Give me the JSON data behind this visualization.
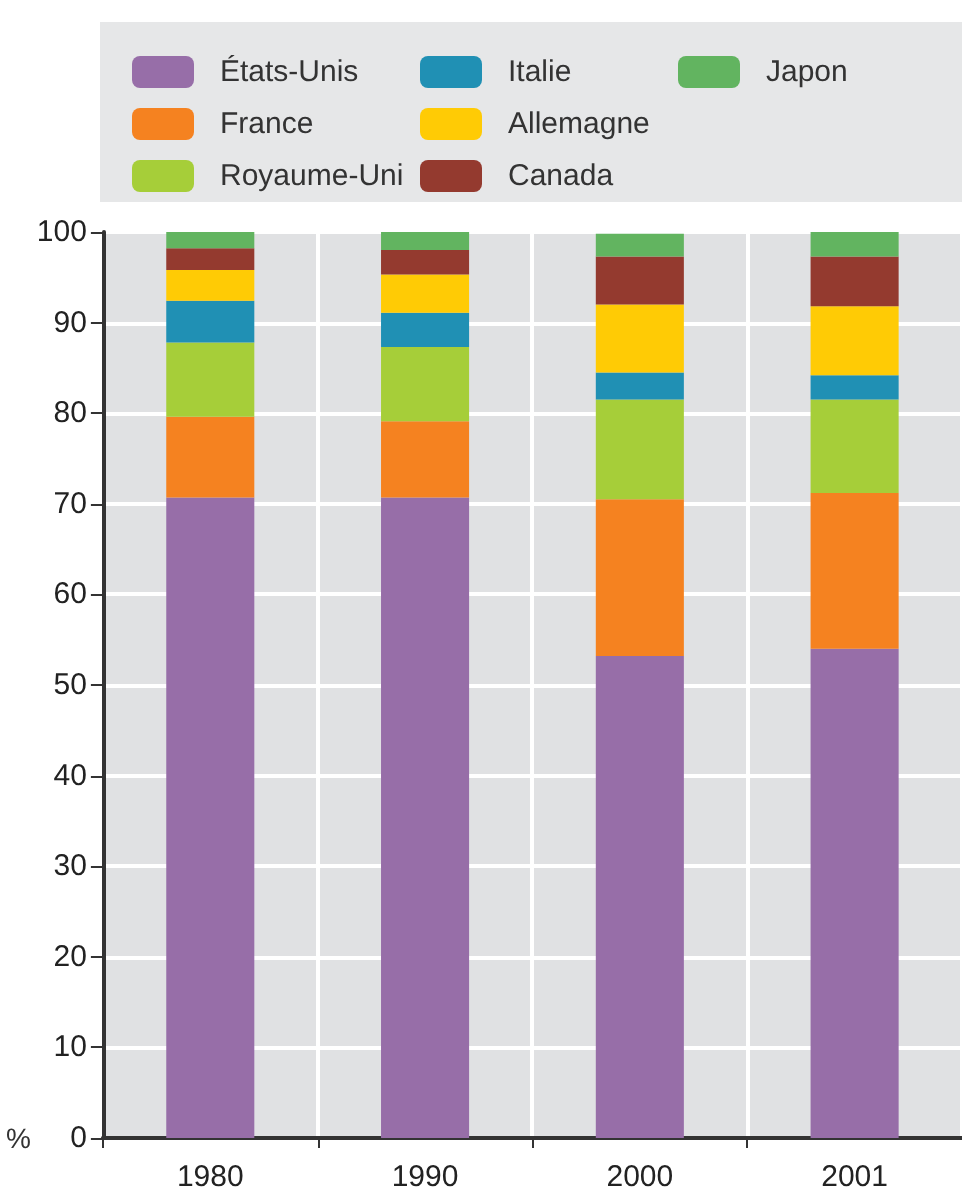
{
  "chart_data": {
    "type": "bar",
    "stacked": true,
    "ylabel": "%",
    "categories": [
      "1980",
      "1990",
      "2000",
      "2001"
    ],
    "series": [
      {
        "name": "États-Unis",
        "color": "#976ea8",
        "values": [
          70.7,
          70.7,
          53.2,
          54.0
        ]
      },
      {
        "name": "France",
        "color": "#f58220",
        "values": [
          8.9,
          8.4,
          17.3,
          17.2
        ]
      },
      {
        "name": "Royaume-Uni",
        "color": "#a6ce39",
        "values": [
          8.2,
          8.2,
          11.0,
          10.3
        ]
      },
      {
        "name": "Italie",
        "color": "#2090b4",
        "values": [
          4.6,
          3.8,
          3.0,
          2.7
        ]
      },
      {
        "name": "Allemagne",
        "color": "#ffcb05",
        "values": [
          3.4,
          4.2,
          7.5,
          7.6
        ]
      },
      {
        "name": "Canada",
        "color": "#943a2f",
        "values": [
          2.4,
          2.7,
          5.3,
          5.5
        ]
      },
      {
        "name": "Japon",
        "color": "#62b460",
        "values": [
          1.8,
          2.0,
          2.5,
          2.7
        ]
      }
    ],
    "ylim": [
      0,
      100
    ],
    "yticks": [
      0,
      10,
      20,
      30,
      40,
      50,
      60,
      70,
      80,
      90,
      100
    ],
    "grid": true,
    "legend": "top"
  }
}
